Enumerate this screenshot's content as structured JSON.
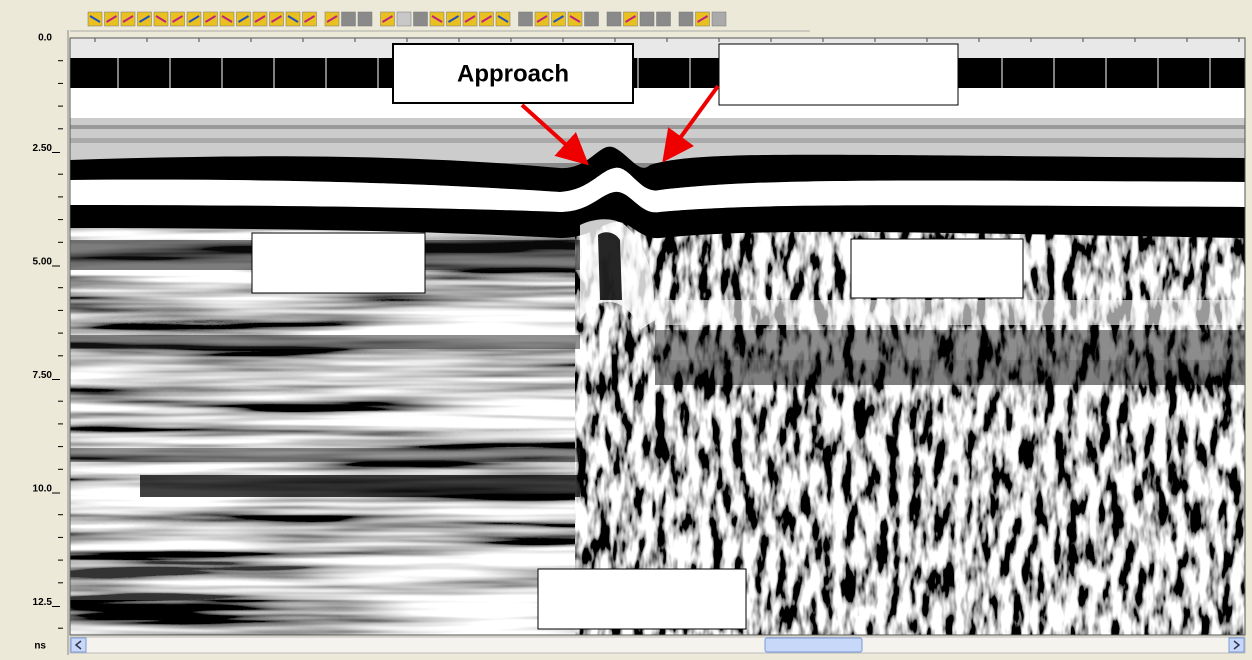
{
  "axis": {
    "labels": [
      "0.0",
      "2.50",
      "5.00",
      "7.50",
      "10.0",
      "12.5"
    ],
    "unit": "ns"
  },
  "annotations": [
    {
      "label": "Approach"
    }
  ]
}
